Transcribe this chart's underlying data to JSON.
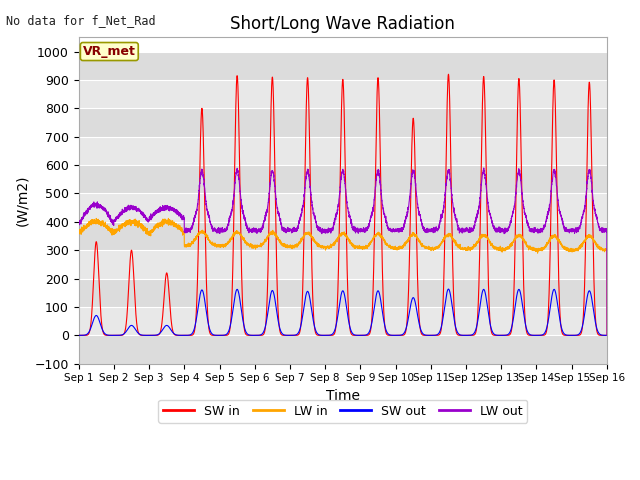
{
  "title": "Short/Long Wave Radiation",
  "xlabel": "Time",
  "ylabel": "(W/m2)",
  "ylim": [
    -100,
    1050
  ],
  "xlim": [
    0,
    15
  ],
  "annotation": "No data for f_Net_Rad",
  "box_label": "VR_met",
  "x_tick_labels": [
    "Sep 1",
    "Sep 2",
    "Sep 3",
    "Sep 4",
    "Sep 5",
    "Sep 6",
    "Sep 7",
    "Sep 8",
    "Sep 9",
    "Sep 10",
    "Sep 11",
    "Sep 12",
    "Sep 13",
    "Sep 14",
    "Sep 15",
    "Sep 16"
  ],
  "yticks": [
    -100,
    0,
    100,
    200,
    300,
    400,
    500,
    600,
    700,
    800,
    900,
    1000
  ],
  "colors": {
    "SW_in": "#FF0000",
    "LW_in": "#FFA500",
    "SW_out": "#0000FF",
    "LW_out": "#9900CC"
  },
  "background_color": "#E8E8E8",
  "grid_color": "#FFFFFF",
  "legend_labels": [
    "SW in",
    "LW in",
    "SW out",
    "LW out"
  ],
  "figsize": [
    6.4,
    4.8
  ],
  "dpi": 100
}
